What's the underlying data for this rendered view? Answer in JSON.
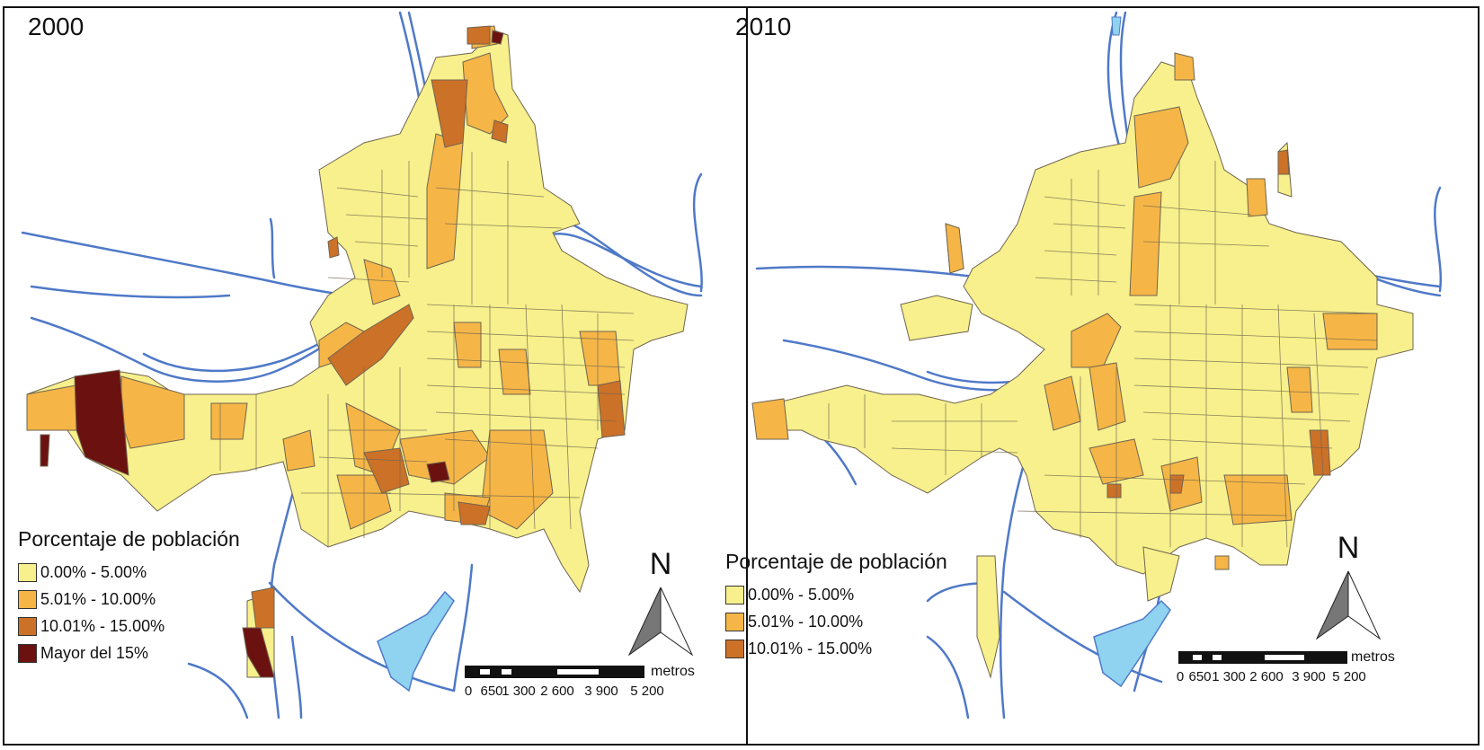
{
  "colors": {
    "class1": "#f7f08c",
    "class2": "#f5b647",
    "class3": "#cc7128",
    "class4": "#6b1210",
    "river": "#4f79c8",
    "water": "#8fd3f0",
    "border": "#6f6450"
  },
  "panels": [
    {
      "year": "2000",
      "legend": {
        "title": "Porcentaje de población",
        "items": [
          {
            "label": "0.00% - 5.00%",
            "color": "#f7f08c"
          },
          {
            "label": "5.01% - 10.00%",
            "color": "#f5b647"
          },
          {
            "label": "10.01% - 15.00%",
            "color": "#cc7128"
          },
          {
            "label": "Mayor del 15%",
            "color": "#6b1210"
          }
        ]
      },
      "north_label": "N",
      "scale": {
        "unit": "metros",
        "ticks": [
          "0",
          "650",
          "1 300",
          "2 600",
          "3 900",
          "5 200"
        ]
      }
    },
    {
      "year": "2010",
      "legend": {
        "title": "Porcentaje de población",
        "items": [
          {
            "label": "0.00% - 5.00%",
            "color": "#f7f08c"
          },
          {
            "label": "5.01% - 10.00%",
            "color": "#f5b647"
          },
          {
            "label": "10.01% - 15.00%",
            "color": "#cc7128"
          }
        ]
      },
      "north_label": "N",
      "scale": {
        "unit": "metros",
        "ticks": [
          "0",
          "650",
          "1 300",
          "2 600",
          "3 900",
          "5 200"
        ]
      }
    }
  ]
}
